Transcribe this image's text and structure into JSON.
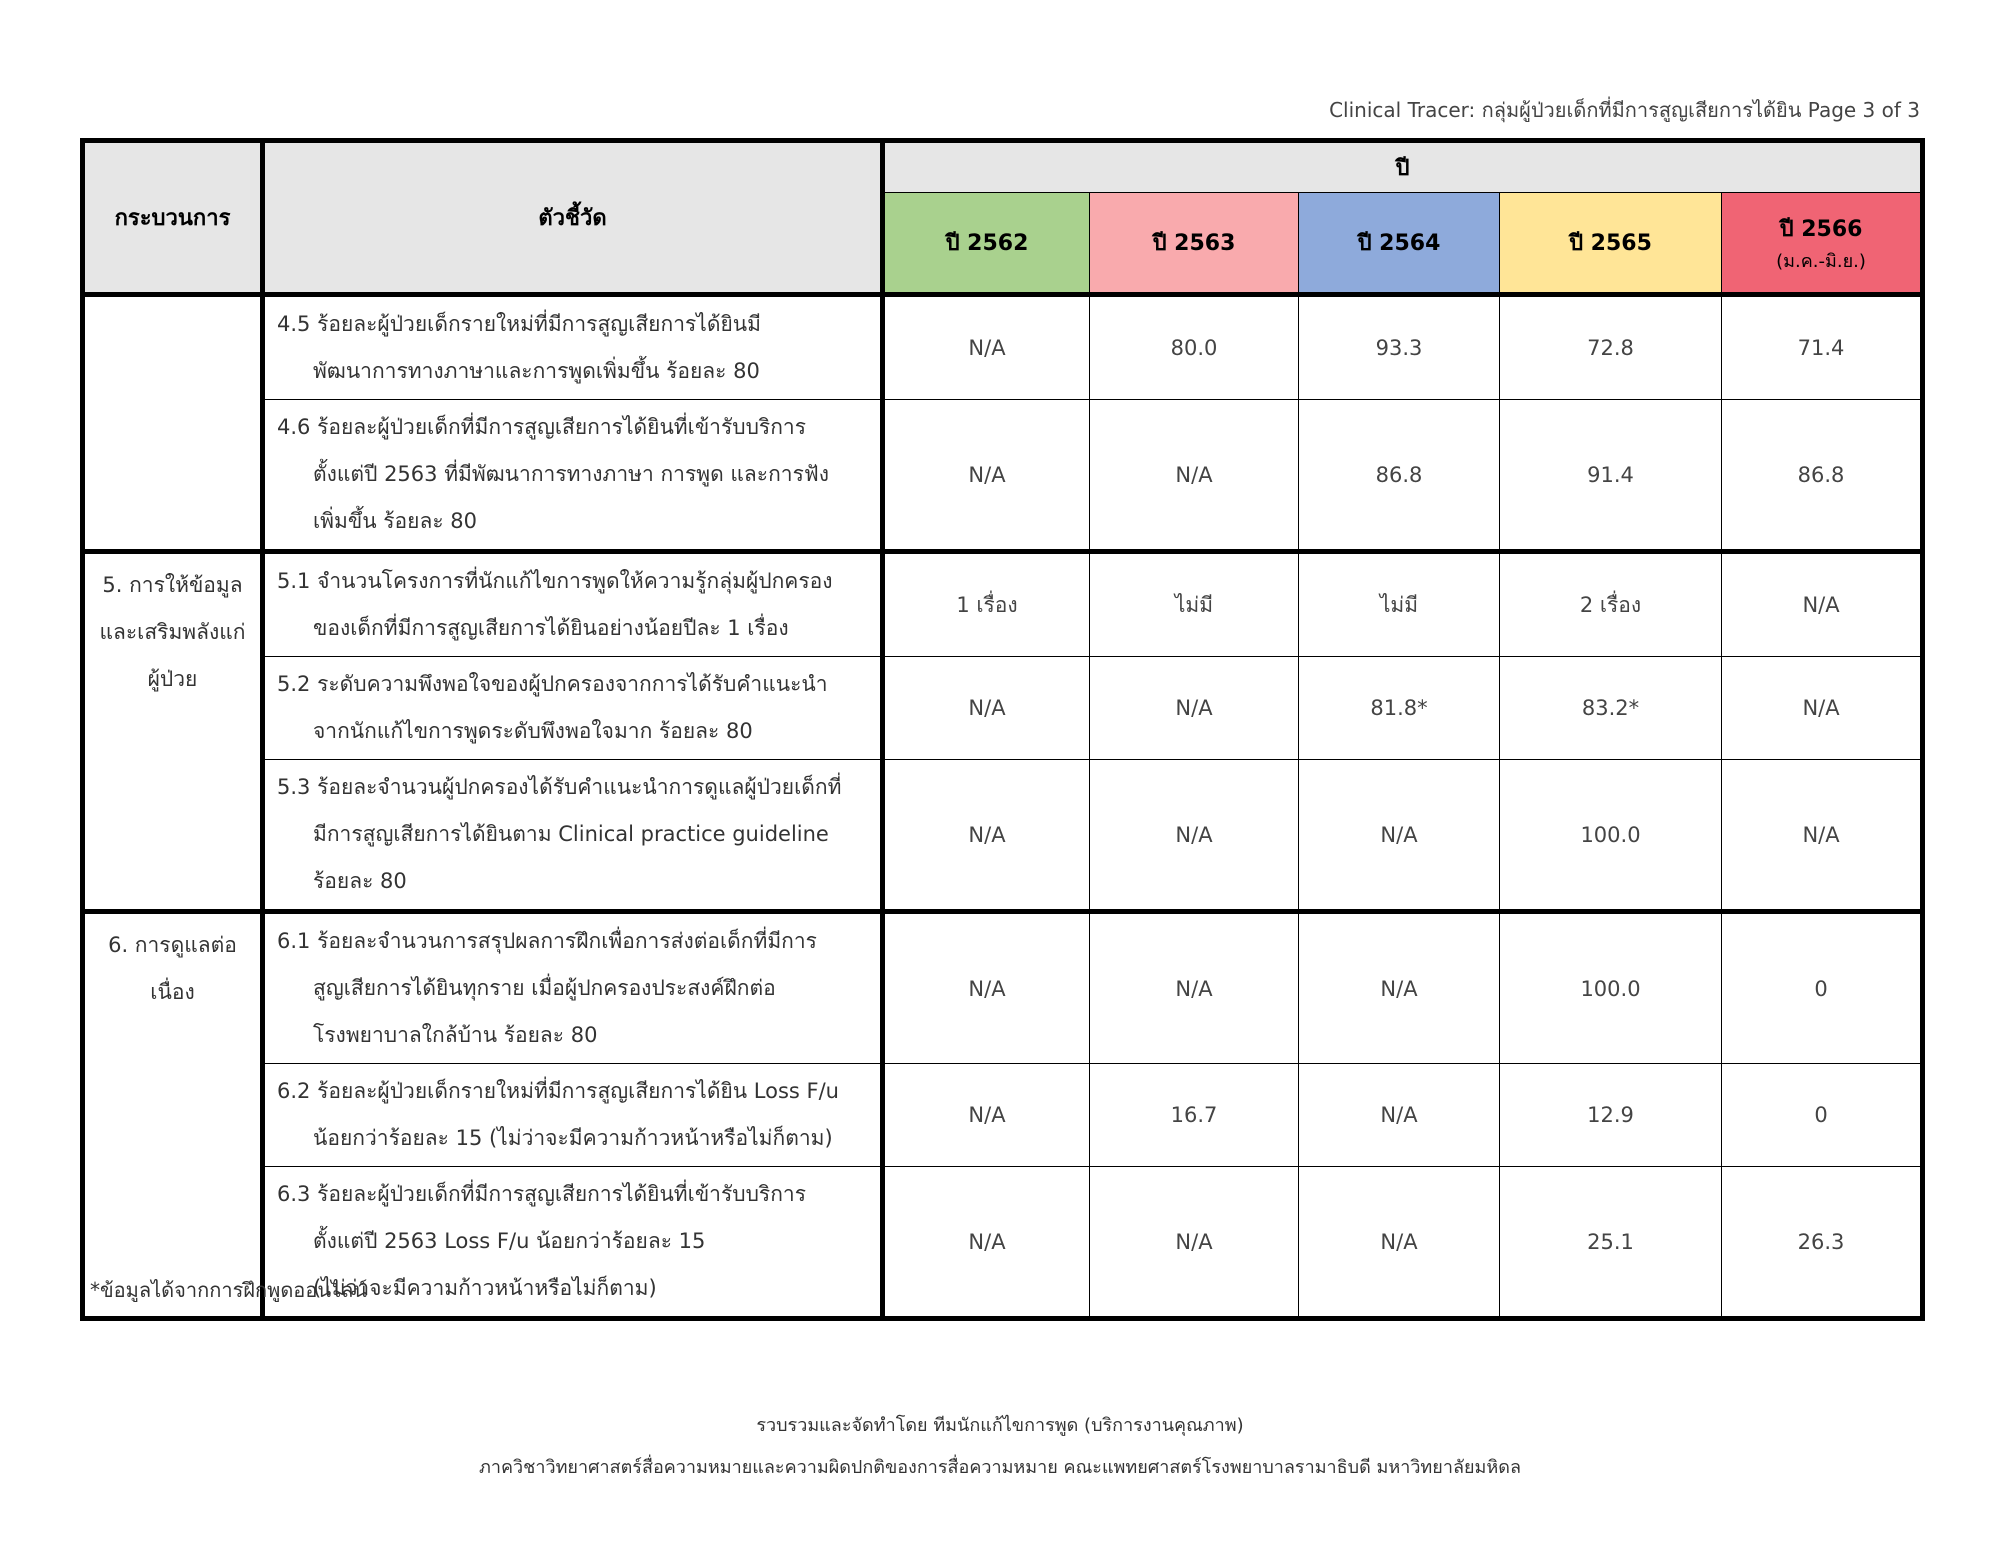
{
  "page_header": "Clinical Tracer: กลุ่มผู้ป่วยเด็กที่มีการสูญเสียการได้ยิน Page 3 of 3",
  "table": {
    "headers": {
      "process": "กระบวนการ",
      "indicator": "ตัวชี้วัด",
      "year_group": "ปี"
    },
    "years": [
      {
        "label": "ปี 2562",
        "sub": "",
        "color": "#a9d18e"
      },
      {
        "label": "ปี 2563",
        "sub": "",
        "color": "#f9aaad"
      },
      {
        "label": "ปี 2564",
        "sub": "",
        "color": "#8eaadb"
      },
      {
        "label": "ปี 2565",
        "sub": "",
        "color": "#ffe597"
      },
      {
        "label": "ปี 2566",
        "sub": "(ม.ค.-มิ.ย.)",
        "color": "#f06474"
      }
    ],
    "groups": [
      {
        "process": "",
        "rows": [
          {
            "lines": [
              "4.5 ร้อยละผู้ป่วยเด็กรายใหม่ที่มีการสูญเสียการได้ยินมี",
              "พัฒนาการทางภาษาและการพูดเพิ่มขึ้น ร้อยละ 80"
            ],
            "values": [
              "N/A",
              "80.0",
              "93.3",
              "72.8",
              "71.4"
            ]
          },
          {
            "lines": [
              "4.6 ร้อยละผู้ป่วยเด็กที่มีการสูญเสียการได้ยินที่เข้ารับบริการ",
              "ตั้งแต่ปี 2563 ที่มีพัฒนาการทางภาษา การพูด และการฟัง",
              "เพิ่มขึ้น ร้อยละ 80"
            ],
            "values": [
              "N/A",
              "N/A",
              "86.8",
              "91.4",
              "86.8"
            ]
          }
        ]
      },
      {
        "process": "5. การให้ข้อมูลและเสริมพลังแก่ผู้ป่วย",
        "process_lines": [
          "5. การให้ข้อมูล",
          "และเสริม",
          "พลังแก่ผู้ป่วย"
        ],
        "rows": [
          {
            "lines": [
              "5.1 จำนวนโครงการที่นักแก้ไขการพูดให้ความรู้กลุ่มผู้ปกครอง",
              "ของเด็กที่มีการสูญเสียการได้ยินอย่างน้อยปีละ 1 เรื่อง"
            ],
            "values": [
              "1 เรื่อง",
              "ไม่มี",
              "ไม่มี",
              "2 เรื่อง",
              "N/A"
            ]
          },
          {
            "lines": [
              "5.2 ระดับความพึงพอใจของผู้ปกครองจากการได้รับคำแนะนำ",
              "จากนักแก้ไขการพูดระดับพึงพอใจมาก ร้อยละ 80"
            ],
            "values": [
              "N/A",
              "N/A",
              "81.8*",
              "83.2*",
              "N/A"
            ]
          },
          {
            "lines": [
              "5.3 ร้อยละจำนวนผู้ปกครองได้รับคำแนะนำการดูแลผู้ป่วยเด็กที่",
              "มีการสูญเสียการได้ยินตาม Clinical practice guideline",
              "ร้อยละ 80"
            ],
            "values": [
              "N/A",
              "N/A",
              "N/A",
              "100.0",
              "N/A"
            ]
          }
        ]
      },
      {
        "process": "6. การดูแลต่อเนื่อง",
        "process_lines": [
          "6. การดูแล",
          "ต่อเนื่อง"
        ],
        "rows": [
          {
            "lines": [
              "6.1 ร้อยละจำนวนการสรุปผลการฝึกเพื่อการส่งต่อเด็กที่มีการ",
              "สูญเสียการได้ยินทุกราย เมื่อผู้ปกครองประสงค์ฝึกต่อ",
              "โรงพยาบาลใกล้บ้าน ร้อยละ 80"
            ],
            "values": [
              "N/A",
              "N/A",
              "N/A",
              "100.0",
              "0"
            ]
          },
          {
            "lines": [
              "6.2 ร้อยละผู้ป่วยเด็กรายใหม่ที่มีการสูญเสียการได้ยิน Loss F/u",
              "น้อยกว่าร้อยละ 15 (ไม่ว่าจะมีความก้าวหน้าหรือไม่ก็ตาม)"
            ],
            "values": [
              "N/A",
              "16.7",
              "N/A",
              "12.9",
              "0"
            ]
          },
          {
            "lines": [
              "6.3 ร้อยละผู้ป่วยเด็กที่มีการสูญเสียการได้ยินที่เข้ารับบริการ",
              "ตั้งแต่ปี 2563 Loss F/u น้อยกว่าร้อยละ 15",
              "(ไม่ว่าจะมีความก้าวหน้าหรือไม่ก็ตาม)"
            ],
            "values": [
              "N/A",
              "N/A",
              "N/A",
              "25.1",
              "26.3"
            ]
          }
        ]
      }
    ]
  },
  "footnote": "*ข้อมูลได้จากการฝึกพูดออนไลน์",
  "footer": {
    "line1": "รวบรวมและจัดทำโดย ทีมนักแก้ไขการพูด (บริการงานคุณภาพ)",
    "line2": "ภาควิชาวิทยาศาสตร์สื่อความหมายและความผิดปกติของการสื่อความหมาย คณะแพทยศาสตร์โรงพยาบาลรามาธิบดี มหาวิทยาลัยมหิดล"
  }
}
